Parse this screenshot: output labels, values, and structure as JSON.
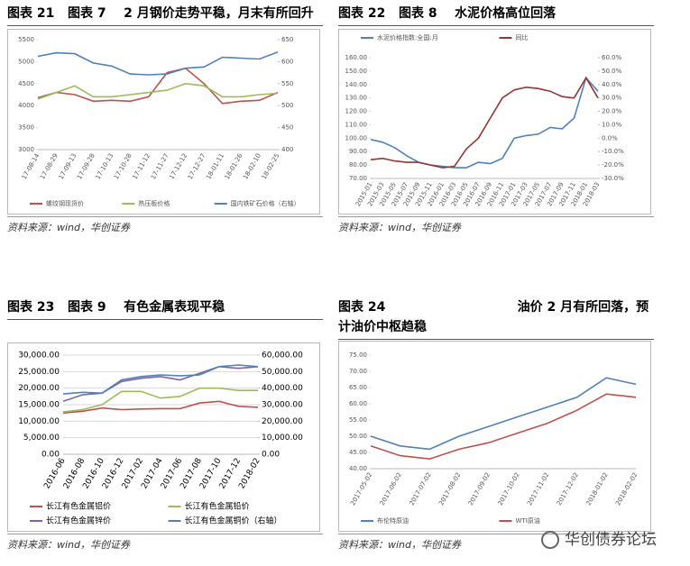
{
  "chart_data": [
    {
      "type": "line",
      "title": "图表 21   图表 7    2 月钢价走势平稳，月末有所回升",
      "source": "资料来源：wind，华创证券",
      "legend": "bottom",
      "categories": [
        "17-08-14",
        "17-08-29",
        "17-09-13",
        "17-09-28",
        "17-10-13",
        "17-10-28",
        "17-11-12",
        "17-11-27",
        "17-12-12",
        "17-12-27",
        "18-01-11",
        "18-01-26",
        "18-02-10",
        "18-02-25"
      ],
      "ylim": [
        3000,
        5500
      ],
      "yticks": [
        3000,
        3500,
        4000,
        4500,
        5000,
        5500
      ],
      "y2lim": [
        400,
        650
      ],
      "y2ticks": [
        400,
        450,
        500,
        550,
        600,
        650
      ],
      "grid": false,
      "series": [
        {
          "name": "螺纹钢现货价",
          "color": "#c0504d",
          "values": [
            4180,
            4300,
            4250,
            4100,
            4120,
            4100,
            4200,
            4750,
            4850,
            4500,
            4050,
            4100,
            4120,
            4300
          ]
        },
        {
          "name": "热压板价格",
          "color": "#9bbb59",
          "values": [
            4150,
            4300,
            4450,
            4200,
            4200,
            4250,
            4300,
            4350,
            4500,
            4450,
            4200,
            4200,
            4250,
            4280
          ]
        },
        {
          "name": "国内铁矿石价格（右轴）",
          "color": "#4f81bd",
          "axis": "y2",
          "values": [
            612,
            620,
            618,
            597,
            590,
            572,
            570,
            572,
            585,
            588,
            610,
            608,
            606,
            622
          ]
        }
      ]
    },
    {
      "type": "line",
      "title": "图表 22   图表 8    水泥价格高位回落",
      "source": "资料来源：wind，华创证券",
      "legend": "top",
      "categories": [
        "2015-01",
        "2015-03",
        "2015-05",
        "2015-07",
        "2015-09",
        "2015-11",
        "2016-01",
        "2016-03",
        "2016-05",
        "2016-07",
        "2016-09",
        "2016-11",
        "2017-01",
        "2017-03",
        "2017-05",
        "2017-07",
        "2017-09",
        "2017-11",
        "2018-01",
        "2018-03"
      ],
      "ylim": [
        70,
        160
      ],
      "yticks": [
        {
          "value": 70,
          "label": "70.00"
        },
        {
          "value": 80,
          "label": "80.00"
        },
        {
          "value": 90,
          "label": "90.00"
        },
        {
          "value": 100,
          "label": "100.00"
        },
        {
          "value": 110,
          "label": "110.00"
        },
        {
          "value": 120,
          "label": "120.00"
        },
        {
          "value": 130,
          "label": "130.00"
        },
        {
          "value": 140,
          "label": "140.00"
        },
        {
          "value": 150,
          "label": "150.00"
        },
        {
          "value": 160,
          "label": "160.00"
        }
      ],
      "y2lim": [
        -30,
        60
      ],
      "y2ticks": [
        {
          "value": -30,
          "label": "-30.0%"
        },
        {
          "value": -20,
          "label": "-20.0%"
        },
        {
          "value": -10,
          "label": "-10.0%"
        },
        {
          "value": 0,
          "label": "0.0%"
        },
        {
          "value": 10,
          "label": "10.0%"
        },
        {
          "value": 20,
          "label": "20.0%"
        },
        {
          "value": 30,
          "label": "30.0%"
        },
        {
          "value": 40,
          "label": "40.0%"
        },
        {
          "value": 50,
          "label": "50.0%"
        },
        {
          "value": 60,
          "label": "60.0%"
        }
      ],
      "grid": false,
      "series": [
        {
          "name": "水泥价格指数:全国:月",
          "color": "#4f81bd",
          "values": [
            99,
            97,
            93,
            87,
            82,
            80,
            79,
            78,
            78,
            82,
            81,
            85,
            100,
            102,
            103,
            108,
            107,
            115,
            145,
            135
          ]
        },
        {
          "name": "同比",
          "color": "#943634",
          "axis": "y2",
          "values": [
            -16,
            -15,
            -17,
            -18,
            -18,
            -20,
            -22,
            -21,
            -8,
            0,
            15,
            30,
            36,
            38,
            37,
            35,
            31,
            30,
            45,
            30
          ]
        }
      ]
    },
    {
      "type": "line",
      "title": "图表 23   图表 9    有色金属表现平稳",
      "source": "资料来源：wind，华创证券",
      "legend": "bottom",
      "categories": [
        "2016-06",
        "2016-08",
        "2016-10",
        "2016-12",
        "2017-02",
        "2017-04",
        "2017-06",
        "2017-08",
        "2017-10",
        "2017-12",
        "2018-02"
      ],
      "ylim": [
        0,
        30000
      ],
      "yticks": [
        {
          "value": 0,
          "label": "0.00"
        },
        {
          "value": 5000,
          "label": "5,000.00"
        },
        {
          "value": 10000,
          "label": "10,000.00"
        },
        {
          "value": 15000,
          "label": "15,000.00"
        },
        {
          "value": 20000,
          "label": "20,000.00"
        },
        {
          "value": 25000,
          "label": "25,000.00"
        },
        {
          "value": 30000,
          "label": "30,000.00"
        }
      ],
      "y2lim": [
        0,
        60000
      ],
      "y2ticks": [
        {
          "value": 0,
          "label": "0.00"
        },
        {
          "value": 10000,
          "label": "10,000.00"
        },
        {
          "value": 20000,
          "label": "20,000.00"
        },
        {
          "value": 30000,
          "label": "30,000.00"
        },
        {
          "value": 40000,
          "label": "40,000.00"
        },
        {
          "value": 50000,
          "label": "50,000.00"
        },
        {
          "value": 60000,
          "label": "60,000.00"
        }
      ],
      "grid": true,
      "series": [
        {
          "name": "长江有色金属铝价",
          "color": "#c0504d",
          "values": [
            12500,
            13000,
            14000,
            13500,
            13700,
            13800,
            13800,
            15500,
            16000,
            14500,
            14200
          ]
        },
        {
          "name": "长江有色金属铅价",
          "color": "#9bbb59",
          "values": [
            12800,
            13500,
            15000,
            19000,
            19000,
            17000,
            17500,
            20000,
            20000,
            19300,
            19300
          ]
        },
        {
          "name": "长江有色金属锌价",
          "color": "#8064a2",
          "values": [
            16000,
            18000,
            18500,
            22000,
            23000,
            23500,
            22500,
            24500,
            26500,
            26000,
            26500
          ]
        },
        {
          "name": "长江有色金属铜价（右轴）",
          "color": "#4f81bd",
          "axis": "y2",
          "values": [
            36500,
            37500,
            37000,
            45000,
            47000,
            48000,
            47500,
            48000,
            53000,
            54000,
            53000
          ]
        }
      ]
    },
    {
      "type": "line",
      "title": "图表 24                              油价 2 月有所回落，预计油价中枢趋稳",
      "source": "资料来源：wind，华创证券",
      "legend": "bottom",
      "categories": [
        "2017-05-02",
        "2017-06-02",
        "2017-07-02",
        "2017-08-02",
        "2017-09-02",
        "2017-10-02",
        "2017-11-02",
        "2017-12-02",
        "2018-01-02",
        "2018-02-02"
      ],
      "ylim": [
        40,
        75
      ],
      "yticks": [
        {
          "value": 40,
          "label": "40.00"
        },
        {
          "value": 45,
          "label": "45.00"
        },
        {
          "value": 50,
          "label": "50.00"
        },
        {
          "value": 55,
          "label": "55.00"
        },
        {
          "value": 60,
          "label": "60.00"
        },
        {
          "value": 65,
          "label": "65.00"
        },
        {
          "value": 70,
          "label": "70.00"
        },
        {
          "value": 75,
          "label": "75.00"
        }
      ],
      "grid": false,
      "series": [
        {
          "name": "布伦特原油",
          "color": "#4f81bd",
          "values": [
            50,
            47,
            46,
            50,
            53,
            56,
            59,
            62,
            68,
            66
          ]
        },
        {
          "name": "WTI原油",
          "color": "#c0504d",
          "values": [
            47,
            44,
            43,
            46,
            48,
            51,
            54,
            58,
            63,
            62
          ]
        }
      ]
    }
  ],
  "watermark": "华创债券论坛"
}
